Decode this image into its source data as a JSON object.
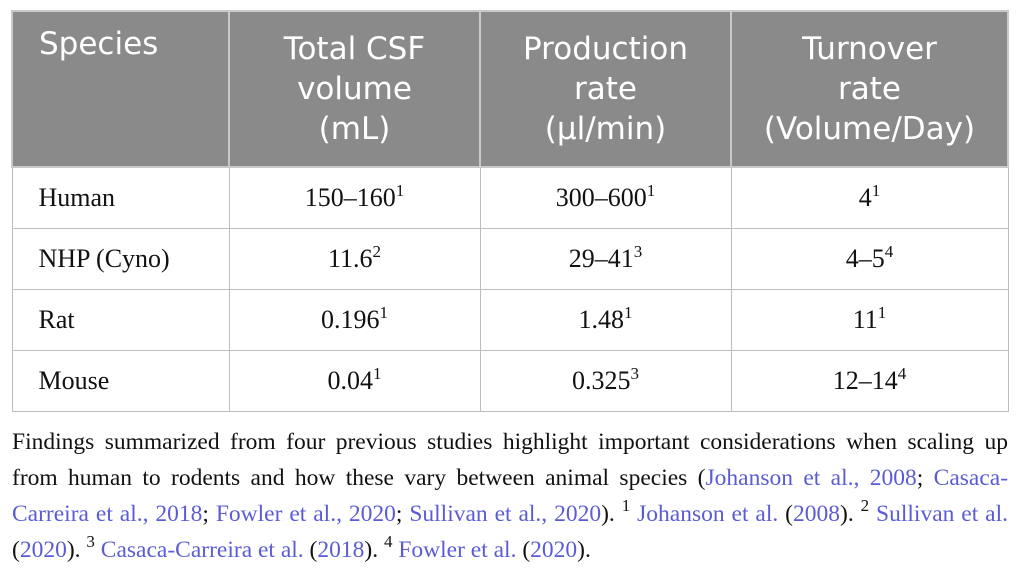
{
  "table": {
    "headers": [
      [
        "Species"
      ],
      [
        "Total CSF",
        "volume",
        "(mL)"
      ],
      [
        "Production",
        "rate",
        "(μl/min)"
      ],
      [
        "Turnover",
        "rate",
        "(Volume/Day)"
      ]
    ],
    "rows": [
      {
        "species": "Human",
        "volume": "150–160",
        "volume_sup": "1",
        "production": "300–600",
        "production_sup": "1",
        "turnover": "4",
        "turnover_sup": "1"
      },
      {
        "species": "NHP (Cyno)",
        "volume": "11.6",
        "volume_sup": "2",
        "production": "29–41",
        "production_sup": "3",
        "turnover": "4–5",
        "turnover_sup": "4"
      },
      {
        "species": "Rat",
        "volume": "0.196",
        "volume_sup": "1",
        "production": "1.48",
        "production_sup": "1",
        "turnover": "11",
        "turnover_sup": "1"
      },
      {
        "species": "Mouse",
        "volume": "0.04",
        "volume_sup": "1",
        "production": "0.325",
        "production_sup": "3",
        "turnover": "12–14",
        "turnover_sup": "4"
      }
    ]
  },
  "caption": {
    "text1": "Findings summarized from four previous studies highlight important considerations when scaling up from human to rodents and how these vary between animal species (",
    "ref1": "Johanson et al., 2008",
    "sep1": "; ",
    "ref2": "Casaca-Carreira et al., 2018",
    "sep2": "; ",
    "ref3": "Fowler et al., 2020",
    "sep3": "; ",
    "ref4": "Sullivan et al., 2020",
    "text2": "). ",
    "fn1": "1",
    "fn1_ref": "Johanson et al.",
    "fn1_year_open": " (",
    "fn1_year": "2008",
    "fn1_close": "). ",
    "fn2": "2",
    "fn2_ref": "Sullivan et al.",
    "fn2_year_open": " (",
    "fn2_year": "2020",
    "fn2_close": "). ",
    "fn3": "3",
    "fn3_ref": "Casaca-Carreira et al.",
    "fn3_year_open": " (",
    "fn3_year": "2018",
    "fn3_close": "). ",
    "fn4": "4",
    "fn4_ref": "Fowler et al.",
    "fn4_year_open": " (",
    "fn4_year": "2020",
    "fn4_close": ")."
  },
  "colors": {
    "header_bg": "#8a8a8a",
    "link": "#5b5bd6"
  }
}
